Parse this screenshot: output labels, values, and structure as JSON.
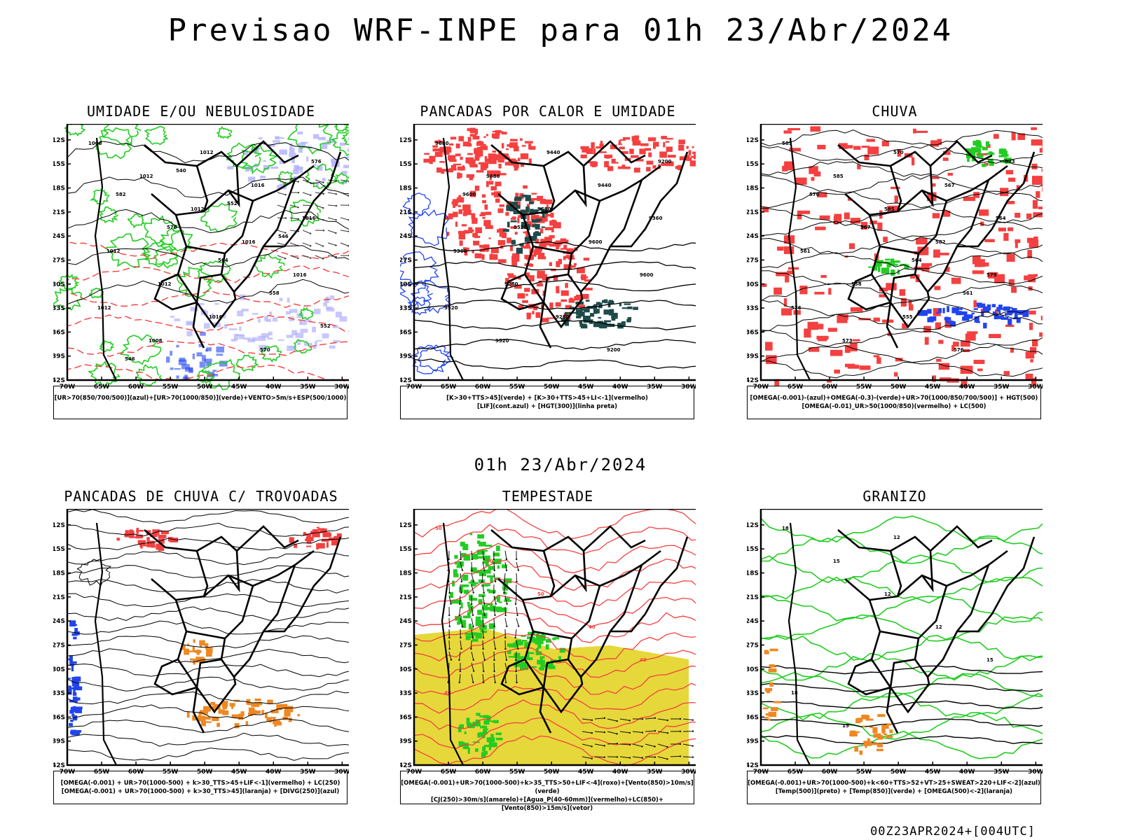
{
  "header": {
    "title": "Previsao WRF-INPE  para 01h 23/Abr/2024",
    "mid_title": "01h 23/Abr/2024"
  },
  "footer": {
    "stamp": "00Z23APR2024+[004UTC]"
  },
  "axes": {
    "lat_labels": [
      "12S",
      "15S",
      "18S",
      "21S",
      "24S",
      "27S",
      "30S",
      "33S",
      "36S",
      "39S",
      "42S"
    ],
    "lon_labels": [
      "70W",
      "65W",
      "60W",
      "55W",
      "50W",
      "45W",
      "40W",
      "35W",
      "30W"
    ]
  },
  "colors": {
    "red": "#f44040",
    "green": "#22cc22",
    "blue": "#2244ee",
    "lavender": "#b0b0ff",
    "darkteal": "#1f4a4a",
    "yellow": "#e6d83a",
    "orange": "#ee8822",
    "lime": "#33ee33"
  },
  "panels": [
    {
      "title": "UMIDADE E/OU NEBULOSIDADE",
      "legend": [
        "[UR>70(850/700/500)](azul)+[UR>70(1000/850)](verde)+VENTO>5m/s+ESP(500/1000)"
      ],
      "labels": [
        "1008",
        "1012",
        "1012",
        "1016",
        "1016",
        "1012",
        "1008",
        "1012",
        "1016",
        "1016",
        "1012",
        "1012",
        "1016",
        "570",
        "576",
        "582",
        "570",
        "564",
        "558",
        "552",
        "546",
        "540",
        "552",
        "546"
      ]
    },
    {
      "title": "PANCADAS POR CALOR E UMIDADE",
      "legend": [
        "[K>30+TTS>45](verde) + [K>30+TTS>45+LI<-1](vermelho)",
        "[LIF](cont.azul) + [HGT(300)](linha preta)"
      ],
      "labels": [
        "9680",
        "9680",
        "9680",
        "9600",
        "9600",
        "9520",
        "9520",
        "9440",
        "9440",
        "9360",
        "9360",
        "9280",
        "9280",
        "9200",
        "9200",
        "9600",
        "9520"
      ]
    },
    {
      "title": "CHUVA",
      "legend": [
        "[OMEGA(-0.001)-(azul)+OMEGA(-0.3)-(verde)+UR>70(1000/850/700/500)] + HGT(500)",
        "[OMEGA(-0.01)_UR>50(1000/850)(vermelho) + LC(500)"
      ],
      "labels": [
        "585",
        "585",
        "585",
        "582",
        "579",
        "576",
        "573",
        "570",
        "567",
        "564",
        "561",
        "558",
        "555",
        "576",
        "573",
        "570",
        "567",
        "564",
        "561"
      ]
    },
    {
      "title": "PANCADAS DE CHUVA C/ TROVOADAS",
      "legend": [
        "[OMEGA(-0.001) + UR>70(1000-500) + k>30_TTS>45+LIF<-1](vermelho) + LC(250)",
        "[OMEGA(-0.001) + UR>70(1000-500) + k>30_TTS>45](laranja) + [DIVG(250)](azul)"
      ],
      "labels": []
    },
    {
      "title": "TEMPESTADE",
      "legend": [
        "[OMEGA(-0.001)+UR>70(1000-500)+k>35_TTS>50+LIF<-4](roxo)+[Vento(850)>10m/s](verde)",
        "[CJ(250)>30m/s](amarelo)+[Agua_P(40-60mm)](vermelho)+LC(850)+[Vento(850)>15m/s](vetor)"
      ],
      "labels": [
        "50",
        "50",
        "50",
        "40",
        "40",
        "40"
      ]
    },
    {
      "title": "GRANIZO",
      "legend": [
        "[OMEGA(-0.001)+UR>70(1000-500)+k<60+TTS>52+VT>25+SWEAT>220+LIF<-2](azul)",
        "[Temp(500)](preto) + [Temp(850)](verde) + [OMEGA(500)<-2](laranja)"
      ],
      "labels": [
        "18",
        "15",
        "12",
        "12",
        "15",
        "18",
        "15",
        "12"
      ]
    }
  ]
}
